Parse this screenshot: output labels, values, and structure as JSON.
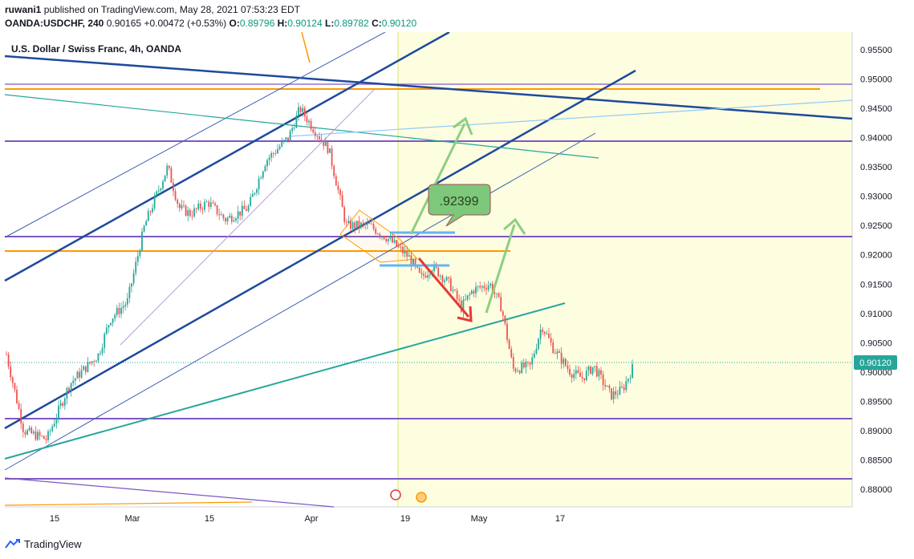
{
  "header": {
    "user": "ruwani1",
    "published_text": "published on TradingView.com, May 28, 2021 07:53:23 EDT",
    "symbol": "OANDA:USDCHF, 240",
    "last": "0.90165",
    "change": "+0.00472 (+0.53%)",
    "o_label": "O:",
    "o_value": "0.89796",
    "h_label": "H:",
    "h_value": "0.90124",
    "l_label": "L:",
    "l_value": "0.89782",
    "c_label": "C:",
    "c_value": "0.90120"
  },
  "footer": {
    "brand": "TradingView"
  },
  "chart_data": {
    "type": "candlestick",
    "title": "U.S. Dollar / Swiss Franc, 4h, OANDA",
    "y_ticks": [
      "0.95500",
      "0.95000",
      "0.94500",
      "0.94000",
      "0.93500",
      "0.93000",
      "0.92500",
      "0.92000",
      "0.91500",
      "0.91000",
      "0.90500",
      "0.90000",
      "0.89500",
      "0.89000",
      "0.88500",
      "0.88000"
    ],
    "ylim": [
      0.877,
      0.958
    ],
    "x_ticks": [
      "15",
      "Mar",
      "15",
      "Apr",
      "19",
      "May",
      "17"
    ],
    "last_price_label": "0.90120",
    "price_path": [
      [
        "2021-02-08",
        0.903
      ],
      [
        "2021-02-11",
        0.89
      ],
      [
        "2021-02-15",
        0.8885
      ],
      [
        "2021-02-19",
        0.898
      ],
      [
        "2021-02-24",
        0.903
      ],
      [
        "2021-02-26",
        0.909
      ],
      [
        "2021-03-01",
        0.912
      ],
      [
        "2021-03-04",
        0.925
      ],
      [
        "2021-03-08",
        0.935
      ],
      [
        "2021-03-10",
        0.928
      ],
      [
        "2021-03-12",
        0.927
      ],
      [
        "2021-03-15",
        0.929
      ],
      [
        "2021-03-18",
        0.926
      ],
      [
        "2021-03-22",
        0.928
      ],
      [
        "2021-03-25",
        0.936
      ],
      [
        "2021-03-29",
        0.94
      ],
      [
        "2021-03-31",
        0.945
      ],
      [
        "2021-04-02",
        0.942
      ],
      [
        "2021-04-05",
        0.938
      ],
      [
        "2021-04-08",
        0.925
      ],
      [
        "2021-04-12",
        0.925
      ],
      [
        "2021-04-15",
        0.923
      ],
      [
        "2021-04-19",
        0.9195
      ],
      [
        "2021-04-21",
        0.916
      ],
      [
        "2021-04-23",
        0.918
      ],
      [
        "2021-04-26",
        0.915
      ],
      [
        "2021-04-28",
        0.911
      ],
      [
        "2021-04-30",
        0.914
      ],
      [
        "2021-05-03",
        0.915
      ],
      [
        "2021-05-05",
        0.911
      ],
      [
        "2021-05-07",
        0.9005
      ],
      [
        "2021-05-10",
        0.901
      ],
      [
        "2021-05-12",
        0.908
      ],
      [
        "2021-05-14",
        0.904
      ],
      [
        "2021-05-17",
        0.9
      ],
      [
        "2021-05-19",
        0.899
      ],
      [
        "2021-05-21",
        0.901
      ],
      [
        "2021-05-24",
        0.896
      ],
      [
        "2021-05-26",
        0.897
      ],
      [
        "2021-05-28",
        0.9012
      ]
    ],
    "annotations": [
      ".92399"
    ],
    "colors": {
      "background_shade": "#fdfde0",
      "up_candle": "#26a69a",
      "down_candle": "#ef5350",
      "channel_blue": "#1e4a9c",
      "orange_level": "#ff9800",
      "purple_level": "#7e57c2",
      "green_arrow": "#6fc36b",
      "red_arrow": "#e53935",
      "teal_trend": "#26a69a"
    }
  }
}
